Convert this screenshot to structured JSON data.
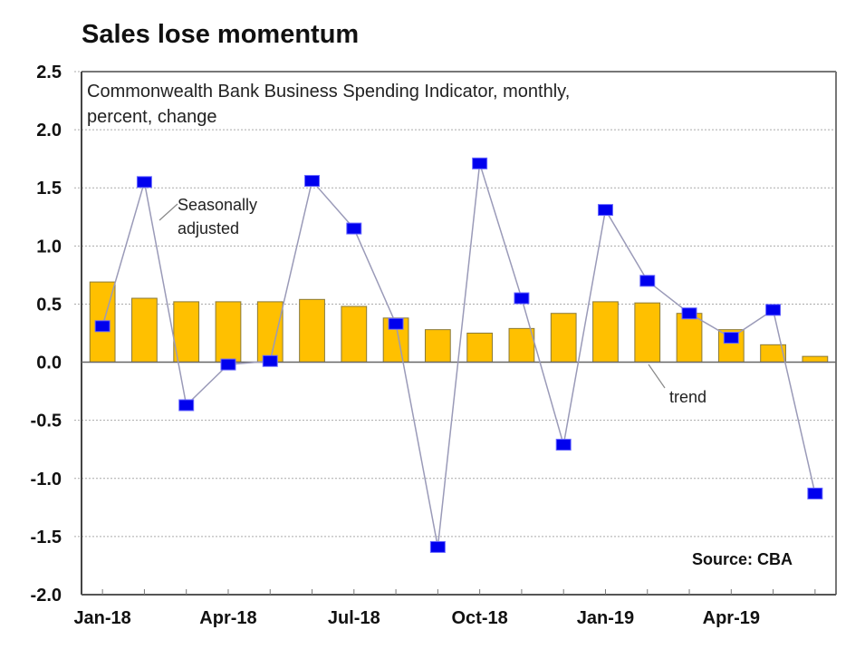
{
  "chart_data": {
    "type": "bar",
    "title": "Sales lose momentum",
    "subtitle_lines": [
      "Commonwealth Bank Business Spending Indicator, monthly,",
      "percent, change"
    ],
    "xlabel": "",
    "ylabel": "",
    "ylim": [
      -2.0,
      2.5
    ],
    "yticks": [
      "2.5",
      "2.0",
      "1.5",
      "1.0",
      "0.5",
      "0.0",
      "-0.5",
      "-1.0",
      "-1.5",
      "-2.0"
    ],
    "ytick_values": [
      2.5,
      2.0,
      1.5,
      1.0,
      0.5,
      0.0,
      -0.5,
      -1.0,
      -1.5,
      -2.0
    ],
    "grid": true,
    "categories": [
      "Jan-18",
      "Feb-18",
      "Mar-18",
      "Apr-18",
      "May-18",
      "Jun-18",
      "Jul-18",
      "Aug-18",
      "Sep-18",
      "Oct-18",
      "Nov-18",
      "Dec-18",
      "Jan-19",
      "Feb-19",
      "Mar-19",
      "Apr-19",
      "May-19",
      "Jun-19"
    ],
    "xtick_labels": [
      {
        "index": 0,
        "label": "Jan-18"
      },
      {
        "index": 3,
        "label": "Apr-18"
      },
      {
        "index": 6,
        "label": "Jul-18"
      },
      {
        "index": 9,
        "label": "Oct-18"
      },
      {
        "index": 12,
        "label": "Jan-19"
      },
      {
        "index": 15,
        "label": "Apr-19"
      }
    ],
    "series": [
      {
        "name": "trend",
        "type": "bar",
        "color": "#FFC000",
        "edge": "#8a7a3a",
        "values": [
          0.69,
          0.55,
          0.52,
          0.52,
          0.52,
          0.54,
          0.48,
          0.38,
          0.28,
          0.25,
          0.29,
          0.42,
          0.52,
          0.51,
          0.42,
          0.28,
          0.15,
          0.05
        ]
      },
      {
        "name": "Seasonally adjusted",
        "type": "line",
        "color": "#0000EE",
        "line_color": "#9a9ab8",
        "values": [
          0.31,
          1.55,
          -0.37,
          -0.02,
          0.01,
          1.56,
          1.15,
          0.33,
          -1.59,
          1.71,
          0.55,
          -0.71,
          1.31,
          0.7,
          0.42,
          0.21,
          0.45,
          -1.13
        ]
      }
    ],
    "annotations": [
      {
        "text_lines": [
          "Seasonally",
          "adjusted"
        ],
        "points_to": "Seasonally adjusted"
      },
      {
        "text_lines": [
          "trend"
        ],
        "points_to": "trend"
      }
    ],
    "source": "Source: CBA"
  }
}
